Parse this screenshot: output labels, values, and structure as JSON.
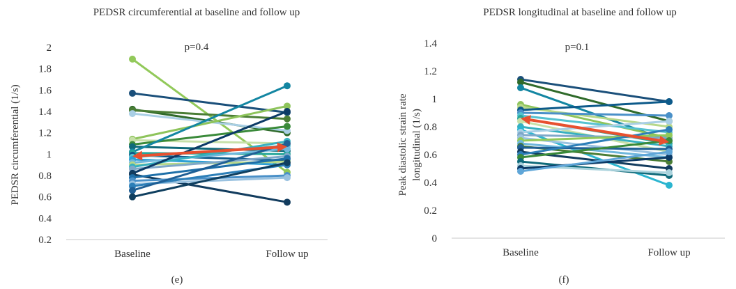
{
  "chart_data": [
    {
      "type": "line",
      "title": "PEDSR circumferential at baseline and follow up",
      "ylabel": "PEDSR circumferential (1/s)",
      "xlabel": "",
      "categories": [
        "Baseline",
        "Follow up"
      ],
      "y_ticks": [
        "0.2",
        "0.4",
        "0.6",
        "0.8",
        "1",
        "1.2",
        "1.4",
        "1.6",
        "1.8",
        "2"
      ],
      "ylim": [
        0.2,
        2.0
      ],
      "annotation": "p=0.4",
      "panel_label": "(e)",
      "mean_arrow": {
        "values": [
          0.98,
          1.07
        ],
        "color": "#e8502f"
      },
      "series": [
        {
          "values": [
            1.89,
            0.83
          ],
          "color": "#92c95a"
        },
        {
          "values": [
            1.57,
            1.39
          ],
          "color": "#1a4f7a"
        },
        {
          "values": [
            1.42,
            1.2
          ],
          "color": "#2f6a2a"
        },
        {
          "values": [
            1.41,
            1.33
          ],
          "color": "#4a7d35"
        },
        {
          "values": [
            1.38,
            1.22
          ],
          "color": "#a9cfe5"
        },
        {
          "values": [
            1.14,
            1.45
          ],
          "color": "#8ec45b"
        },
        {
          "values": [
            1.13,
            1.1
          ],
          "color": "#c7e0a8"
        },
        {
          "values": [
            1.09,
            1.26
          ],
          "color": "#3a8a3a"
        },
        {
          "values": [
            1.07,
            1.03
          ],
          "color": "#0f6a7a"
        },
        {
          "values": [
            1.02,
            1.64
          ],
          "color": "#1386a2"
        },
        {
          "values": [
            1.01,
            1.0
          ],
          "color": "#26a69a"
        },
        {
          "values": [
            0.99,
            0.94
          ],
          "color": "#0d5a8a"
        },
        {
          "values": [
            0.97,
            1.08
          ],
          "color": "#56c2d0"
        },
        {
          "values": [
            0.95,
            0.9
          ],
          "color": "#2b9fd6"
        },
        {
          "values": [
            0.92,
            1.05
          ],
          "color": "#6fb7dc"
        },
        {
          "values": [
            0.9,
            0.93
          ],
          "color": "#b7d88a"
        },
        {
          "values": [
            0.88,
            1.12
          ],
          "color": "#37b0c0"
        },
        {
          "values": [
            0.86,
            0.98
          ],
          "color": "#7fa8c9"
        },
        {
          "values": [
            0.82,
            1.4
          ],
          "color": "#0b3a66"
        },
        {
          "values": [
            0.81,
            0.55
          ],
          "color": "#123c5e"
        },
        {
          "values": [
            0.78,
            0.96
          ],
          "color": "#1e6fa8"
        },
        {
          "values": [
            0.75,
            0.8
          ],
          "color": "#4a90c8"
        },
        {
          "values": [
            0.72,
            0.78
          ],
          "color": "#9ac2e0"
        },
        {
          "values": [
            0.7,
            0.9
          ],
          "color": "#2d7fb8"
        },
        {
          "values": [
            0.66,
            1.1
          ],
          "color": "#1f5f95"
        },
        {
          "values": [
            0.6,
            0.92
          ],
          "color": "#0f3f5f"
        }
      ]
    },
    {
      "type": "line",
      "title": "PEDSR longitudinal at baseline and follow up",
      "ylabel": "Peak diastolic strain rate longitudinal (1/s)",
      "ylabel_lines": [
        "Peak diastolic strain rate",
        "longitudinal (1/s)"
      ],
      "xlabel": "",
      "categories": [
        "Baseline",
        "Follow up"
      ],
      "y_ticks": [
        "0",
        "0.2",
        "0.4",
        "0.6",
        "0.8",
        "1",
        "1.2",
        "1.4"
      ],
      "ylim": [
        0,
        1.4
      ],
      "annotation": "p=0.1",
      "panel_label": "(f)",
      "mean_arrow": {
        "values": [
          0.86,
          0.69
        ],
        "color": "#e8502f"
      },
      "series": [
        {
          "values": [
            1.14,
            0.98
          ],
          "color": "#1a4f7a"
        },
        {
          "values": [
            1.12,
            0.84
          ],
          "color": "#2f6a2a"
        },
        {
          "values": [
            1.08,
            0.7
          ],
          "color": "#1386a2"
        },
        {
          "values": [
            0.96,
            0.72
          ],
          "color": "#8ec45b"
        },
        {
          "values": [
            0.94,
            0.8
          ],
          "color": "#b7d88a"
        },
        {
          "values": [
            0.92,
            0.98
          ],
          "color": "#0d5a8a"
        },
        {
          "values": [
            0.9,
            0.88
          ],
          "color": "#4a90c8"
        },
        {
          "values": [
            0.88,
            0.76
          ],
          "color": "#56c2d0"
        },
        {
          "values": [
            0.86,
            0.68
          ],
          "color": "#26a69a"
        },
        {
          "values": [
            0.84,
            0.62
          ],
          "color": "#c7e0a8"
        },
        {
          "values": [
            0.8,
            0.66
          ],
          "color": "#37b0c0"
        },
        {
          "values": [
            0.78,
            0.38
          ],
          "color": "#2bb5d0"
        },
        {
          "values": [
            0.76,
            0.84
          ],
          "color": "#a9cfe5"
        },
        {
          "values": [
            0.74,
            0.72
          ],
          "color": "#7fa8c9"
        },
        {
          "values": [
            0.72,
            0.6
          ],
          "color": "#9ac2e0"
        },
        {
          "values": [
            0.7,
            0.74
          ],
          "color": "#92c95a"
        },
        {
          "values": [
            0.68,
            0.58
          ],
          "color": "#6fb7dc"
        },
        {
          "values": [
            0.66,
            0.55
          ],
          "color": "#4a7d35"
        },
        {
          "values": [
            0.65,
            0.64
          ],
          "color": "#1f5f95"
        },
        {
          "values": [
            0.62,
            0.5
          ],
          "color": "#123c5e"
        },
        {
          "values": [
            0.6,
            0.78
          ],
          "color": "#2d7fb8"
        },
        {
          "values": [
            0.58,
            0.7
          ],
          "color": "#3a8a3a"
        },
        {
          "values": [
            0.55,
            0.45
          ],
          "color": "#0f6a7a"
        },
        {
          "values": [
            0.52,
            0.47
          ],
          "color": "#a9d2dc"
        },
        {
          "values": [
            0.5,
            0.58
          ],
          "color": "#0b3a66"
        },
        {
          "values": [
            0.48,
            0.62
          ],
          "color": "#5fa6d8"
        }
      ]
    }
  ]
}
